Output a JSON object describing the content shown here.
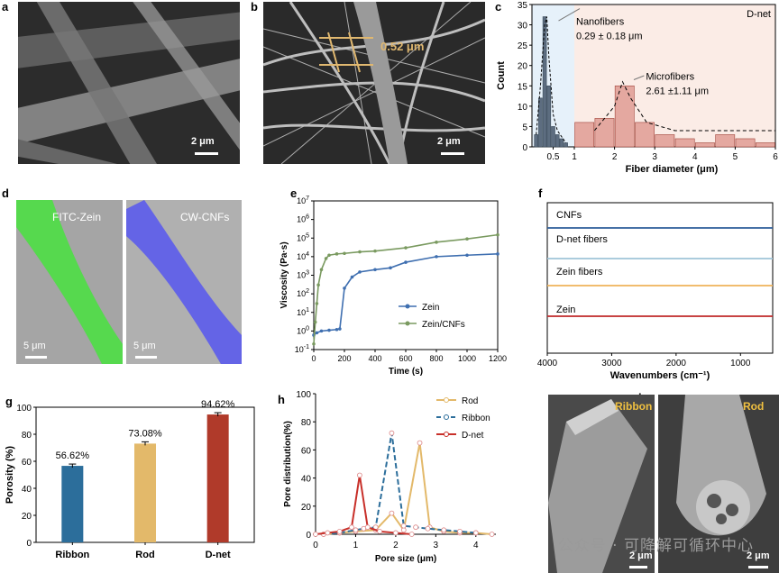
{
  "panels": {
    "a": {
      "label": "a",
      "scale": "2 μm"
    },
    "b": {
      "label": "b",
      "scale": "2 μm",
      "measure": "0.52 μm"
    },
    "c": {
      "label": "c"
    },
    "d": {
      "label": "d",
      "left_title": "FITC-Zein",
      "right_title": "CW-CNFs",
      "left_scale": "5 μm",
      "right_scale": "5 μm"
    },
    "e": {
      "label": "e"
    },
    "f": {
      "label": "f"
    },
    "g": {
      "label": "g"
    },
    "h": {
      "label": "h"
    },
    "i": {
      "label": "i",
      "left_title": "Ribbon",
      "right_title": "Rod",
      "left_scale": "2 μm",
      "right_scale": "2 μm"
    }
  },
  "watermark": "公众号 · 可降解可循环中心",
  "colors": {
    "zein_blue": "#3f6fb0",
    "zein_cnf_green": "#7a9a60",
    "ribbon": "#2c6e9b",
    "rod": "#e3b96a",
    "dnet": "#b03a2a"
  },
  "chart_data": [
    {
      "panel": "c",
      "type": "bar",
      "title": "D-net",
      "xlabel": "Fiber diameter (μm)",
      "ylabel": "Count",
      "xlim": [
        0,
        6
      ],
      "ylim": [
        0,
        35
      ],
      "xticks": [
        "0.5",
        "1",
        "2",
        "3",
        "4",
        "5",
        "6"
      ],
      "yticks": [
        "0",
        "5",
        "10",
        "15",
        "20",
        "25",
        "30",
        "35"
      ],
      "annotations": [
        "Nanofibers",
        "0.29 ± 0.18 μm",
        "Microfibers",
        "2.61 ±1.11 μm"
      ],
      "series": [
        {
          "name": "Nanofibers",
          "x": [
            0.1,
            0.2,
            0.3,
            0.4,
            0.5,
            0.6,
            0.7,
            0.8
          ],
          "values": [
            3,
            12,
            32,
            15,
            5,
            3,
            2,
            1
          ]
        },
        {
          "name": "Microfibers",
          "x": [
            1.25,
            1.75,
            2.25,
            2.75,
            3.25,
            3.75,
            4.25,
            4.75,
            5.25,
            5.75
          ],
          "values": [
            6,
            7,
            15,
            6,
            3,
            2,
            1,
            3,
            2,
            1
          ]
        }
      ]
    },
    {
      "panel": "e",
      "type": "line",
      "xlabel": "Time (s)",
      "ylabel": "Viscosity (Pa·s)",
      "xlim": [
        0,
        1200
      ],
      "ylim_log10": [
        -1,
        7
      ],
      "xticks": [
        "0",
        "200",
        "400",
        "600",
        "800",
        "1000",
        "1200"
      ],
      "yticks_exp": [
        "-1",
        "0",
        "1",
        "2",
        "3",
        "4",
        "5",
        "6",
        "7"
      ],
      "series": [
        {
          "name": "Zein",
          "x": [
            0,
            20,
            50,
            100,
            150,
            170,
            200,
            250,
            300,
            400,
            500,
            600,
            800,
            1000,
            1200
          ],
          "values": [
            0.6,
            0.8,
            1.0,
            1.1,
            1.2,
            1.3,
            200,
            800,
            1500,
            2000,
            2500,
            5000,
            10000,
            12000,
            14000
          ]
        },
        {
          "name": "Zein/CNFs",
          "x": [
            0,
            10,
            20,
            30,
            50,
            80,
            100,
            150,
            200,
            300,
            400,
            600,
            800,
            1000,
            1200
          ],
          "values": [
            0.2,
            3,
            30,
            300,
            2000,
            8000,
            12000,
            14000,
            15000,
            18000,
            20000,
            30000,
            60000,
            90000,
            150000
          ]
        }
      ]
    },
    {
      "panel": "f",
      "type": "line",
      "xlabel": "Wavenumbers (cm⁻¹)",
      "xlim": [
        4000,
        500
      ],
      "xticks": [
        "4000",
        "3000",
        "2000",
        "1000"
      ],
      "series": [
        {
          "name": "CNFs"
        },
        {
          "name": "D-net fibers"
        },
        {
          "name": "Zein fibers"
        },
        {
          "name": "Zein"
        }
      ]
    },
    {
      "panel": "g",
      "type": "bar",
      "ylabel": "Porosity (%)",
      "ylim": [
        0,
        100
      ],
      "categories": [
        "Ribbon",
        "Rod",
        "D-net"
      ],
      "values": [
        56.62,
        73.08,
        94.62
      ],
      "value_labels": [
        "56.62%",
        "73.08%",
        "94.62%"
      ],
      "yticks": [
        "0",
        "20",
        "40",
        "60",
        "80",
        "100"
      ]
    },
    {
      "panel": "h",
      "type": "line",
      "xlabel": "Pore size (μm)",
      "ylabel": "Pore distribution(%)",
      "xlim": [
        0,
        4.5
      ],
      "ylim": [
        0,
        100
      ],
      "xticks": [
        "0",
        "1",
        "2",
        "3",
        "4"
      ],
      "yticks": [
        "0",
        "20",
        "40",
        "60",
        "80",
        "100"
      ],
      "series": [
        {
          "name": "Rod",
          "x": [
            0.2,
            0.6,
            1.0,
            1.5,
            1.9,
            2.2,
            2.6,
            2.85,
            3.2,
            3.6,
            4.0,
            4.4
          ],
          "values": [
            0,
            1,
            2,
            3,
            15,
            3,
            65,
            5,
            2,
            1,
            1,
            0
          ]
        },
        {
          "name": "Ribbon",
          "x": [
            0.2,
            0.6,
            1.0,
            1.2,
            1.5,
            1.9,
            2.2,
            2.5,
            2.8,
            3.2,
            3.6,
            4.0
          ],
          "values": [
            0,
            1,
            3,
            4,
            5,
            72,
            6,
            5,
            4,
            3,
            2,
            1
          ]
        },
        {
          "name": "D-net",
          "x": [
            0.0,
            0.3,
            0.6,
            0.9,
            1.1,
            1.3,
            1.6,
            2.0,
            2.4
          ],
          "values": [
            0,
            1,
            2,
            5,
            42,
            5,
            2,
            1,
            0
          ]
        }
      ]
    }
  ]
}
